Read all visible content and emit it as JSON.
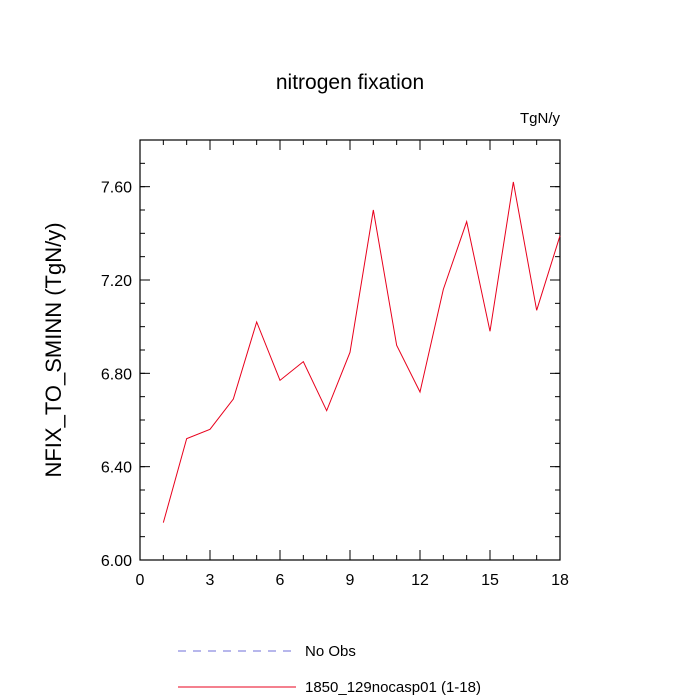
{
  "chart_data": {
    "type": "line",
    "title": "nitrogen fixation",
    "units_label": "TgN/y",
    "ylabel": "NFIX_TO_SMINN  (TgN/y)",
    "xlabel": "",
    "xlim": [
      0,
      18
    ],
    "ylim": [
      6.0,
      7.8
    ],
    "x_ticks": [
      0,
      3,
      6,
      9,
      12,
      15,
      18
    ],
    "x_tick_labels": [
      "0",
      "3",
      "6",
      "9",
      "12",
      "15",
      "18"
    ],
    "x_minor_step": 1,
    "y_ticks": [
      6.0,
      6.4,
      6.8,
      7.2,
      7.6
    ],
    "y_tick_labels": [
      "6.00",
      "6.40",
      "6.80",
      "7.20",
      "7.60"
    ],
    "y_minor_step": 0.1,
    "grid": false,
    "legend_position": "bottom",
    "series": [
      {
        "name": "1850_129nocasp01 (1-18)",
        "color": "#e8001c",
        "dash": "solid",
        "x": [
          1,
          2,
          3,
          4,
          5,
          6,
          7,
          8,
          9,
          10,
          11,
          12,
          13,
          14,
          15,
          16,
          17,
          18
        ],
        "values": [
          6.16,
          6.52,
          6.56,
          6.69,
          7.02,
          6.77,
          6.85,
          6.64,
          6.89,
          7.5,
          6.92,
          6.72,
          7.16,
          7.45,
          6.98,
          7.62,
          7.07,
          7.39
        ]
      }
    ],
    "legend": [
      {
        "label": "No Obs",
        "color": "#6f6fd8",
        "dash": "dashed"
      },
      {
        "label": "1850_129nocasp01 (1-18)",
        "color": "#e8001c",
        "dash": "solid"
      }
    ]
  }
}
